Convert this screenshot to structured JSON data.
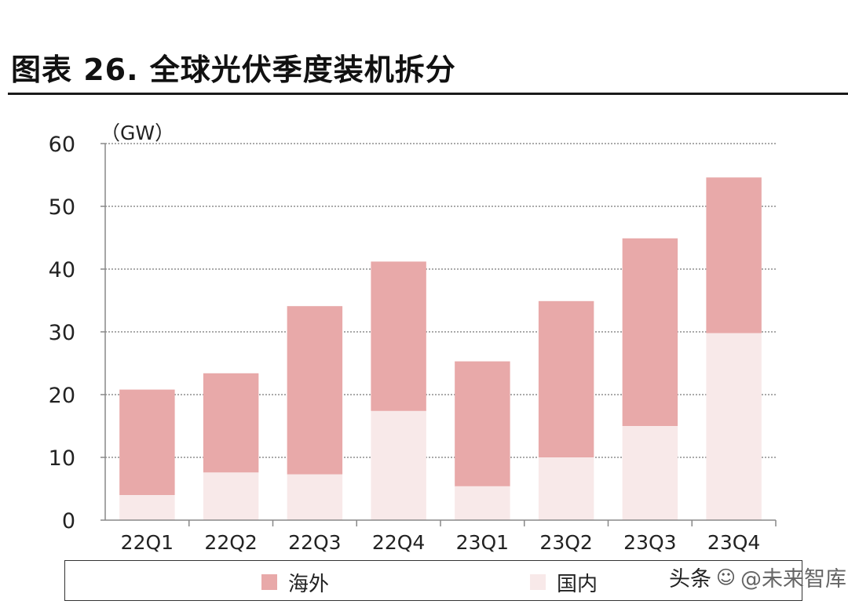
{
  "figure_title": "图表 26. 全球光伏季度装机拆分",
  "watermark": {
    "source": "头条",
    "account": "@未来智库",
    "icon": "wechat-icon"
  },
  "colors": {
    "overseas": "#e8a9a9",
    "domestic": "#f8e9e9",
    "grid": "#555555",
    "axis": "#888888"
  },
  "chart_data": {
    "type": "bar",
    "stacked": true,
    "title": "全球光伏季度装机拆分",
    "unit_label": "（GW）",
    "xlabel": "",
    "ylabel": "",
    "ylim": [
      0,
      60
    ],
    "yticks": [
      "0",
      "10",
      "20",
      "30",
      "40",
      "50",
      "60"
    ],
    "categories": [
      "22Q1",
      "22Q2",
      "22Q3",
      "22Q4",
      "23Q1",
      "23Q2",
      "23Q3",
      "23Q4"
    ],
    "series": [
      {
        "name": "国内",
        "values": [
          4.0,
          7.6,
          7.3,
          17.4,
          5.4,
          10.0,
          15.0,
          29.8
        ]
      },
      {
        "name": "海外",
        "values": [
          16.8,
          15.8,
          26.8,
          23.8,
          19.9,
          24.9,
          29.9,
          24.8
        ]
      }
    ],
    "totals": [
      20.8,
      23.4,
      34.1,
      41.2,
      25.3,
      34.9,
      44.9,
      54.6
    ],
    "legend": [
      "海外",
      "国内"
    ],
    "legend_position": "bottom",
    "grid": true
  }
}
